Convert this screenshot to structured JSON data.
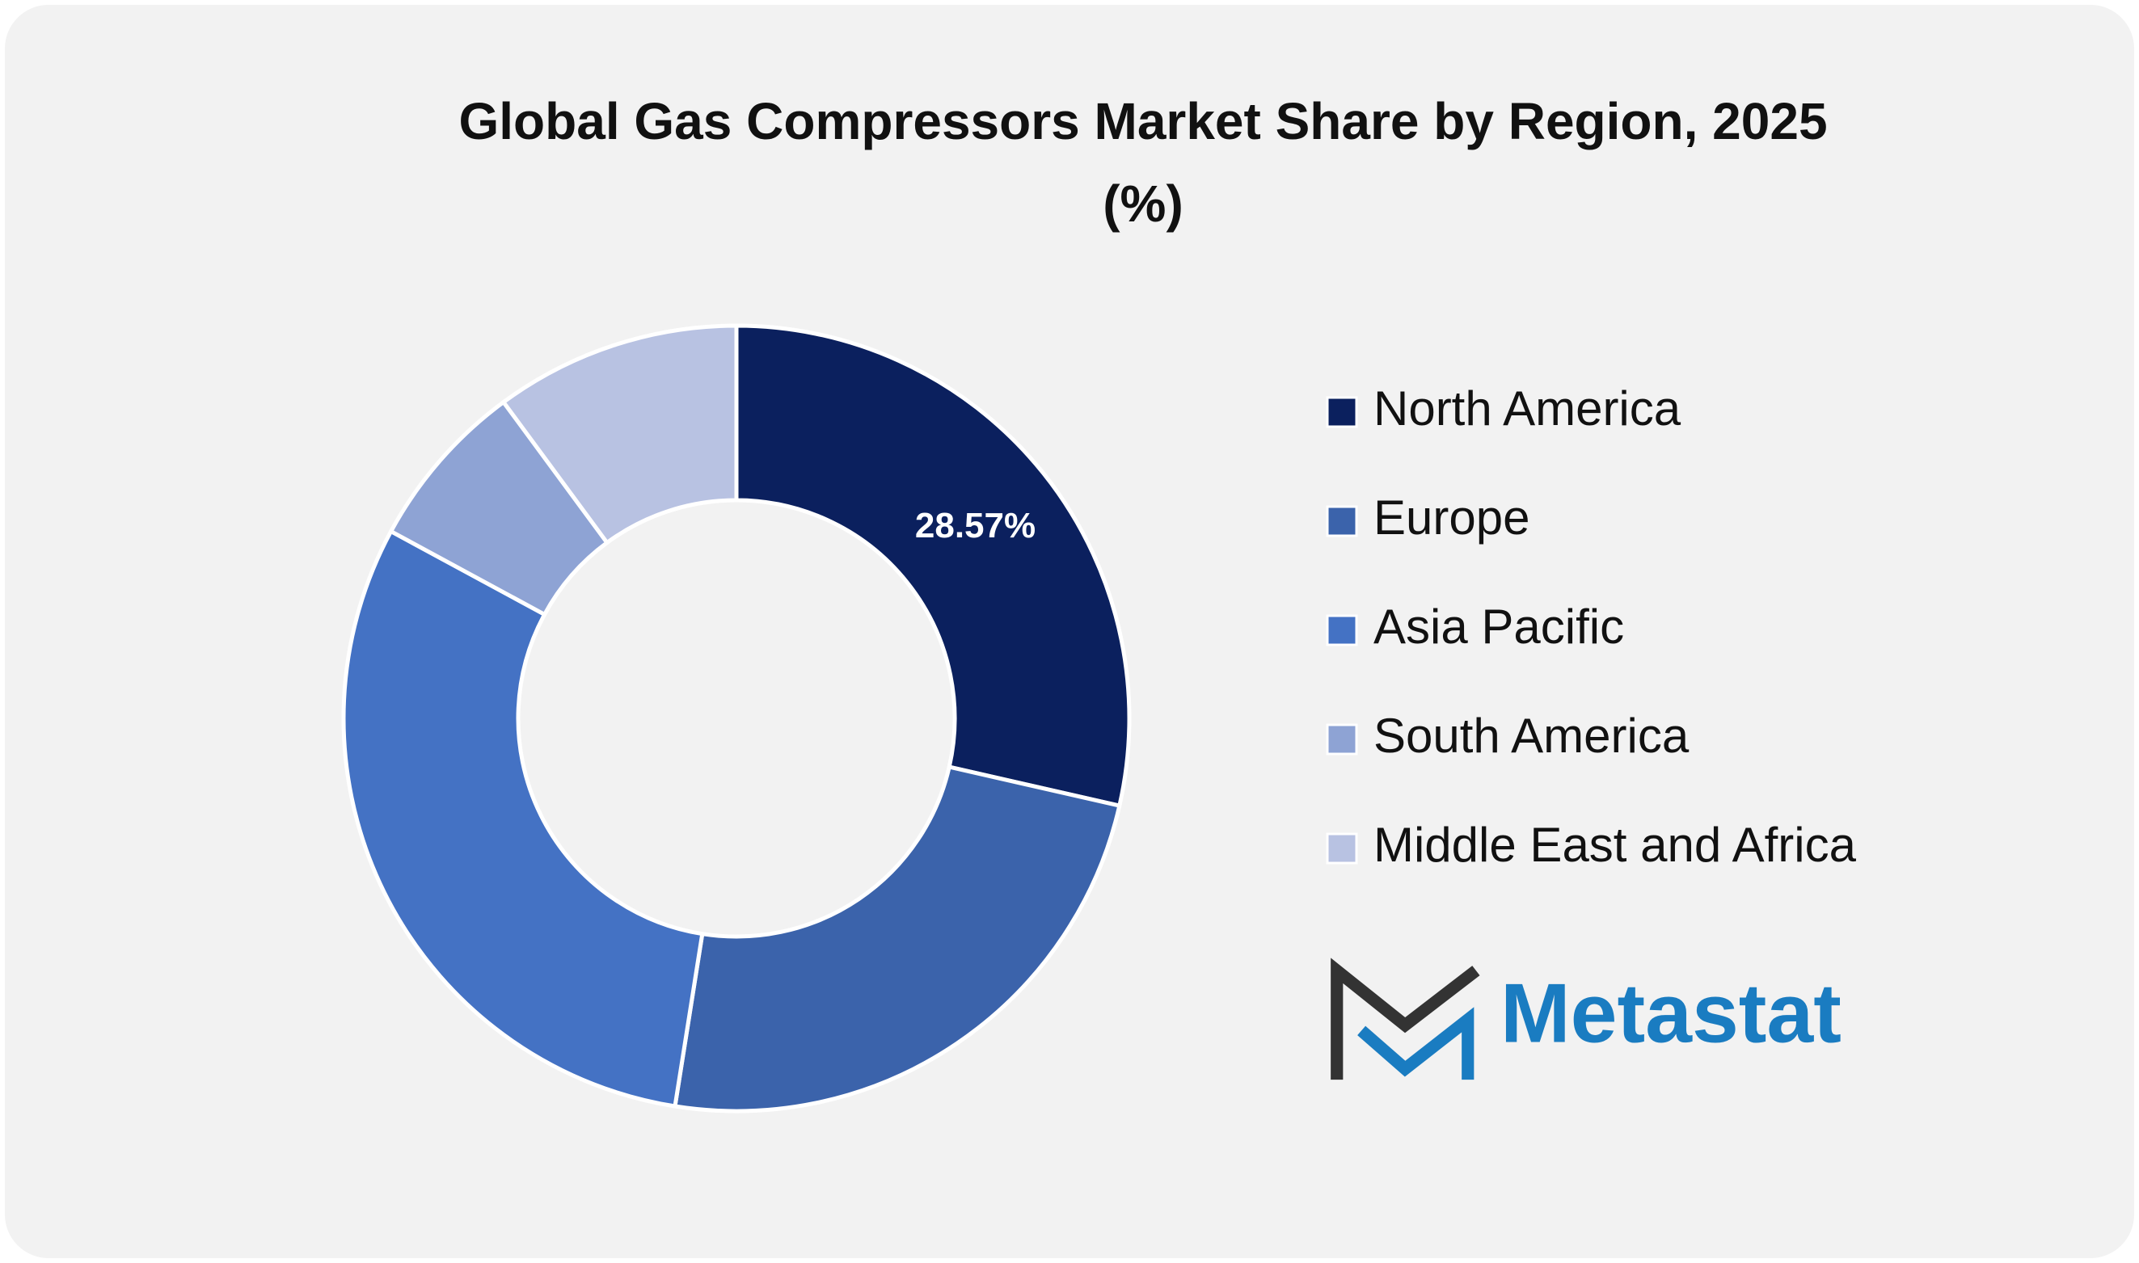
{
  "chart_data": {
    "type": "donut",
    "title": [
      "Global Gas Compressors Market Share by Region, 2025",
      "(%)"
    ],
    "categories": [
      "North America",
      "Europe",
      "Asia Pacific",
      "South America",
      "Middle East and Africa"
    ],
    "values": [
      28.57,
      23.93,
      30.4,
      7.0,
      10.1
    ],
    "value_labels": [
      "28.57%",
      null,
      null,
      null,
      null
    ],
    "colors": [
      "#0b205e",
      "#3b63ab",
      "#4472c4",
      "#8ea3d4",
      "#b8c2e2"
    ],
    "legend": "right"
  },
  "logo": {
    "text": "Metastat"
  }
}
